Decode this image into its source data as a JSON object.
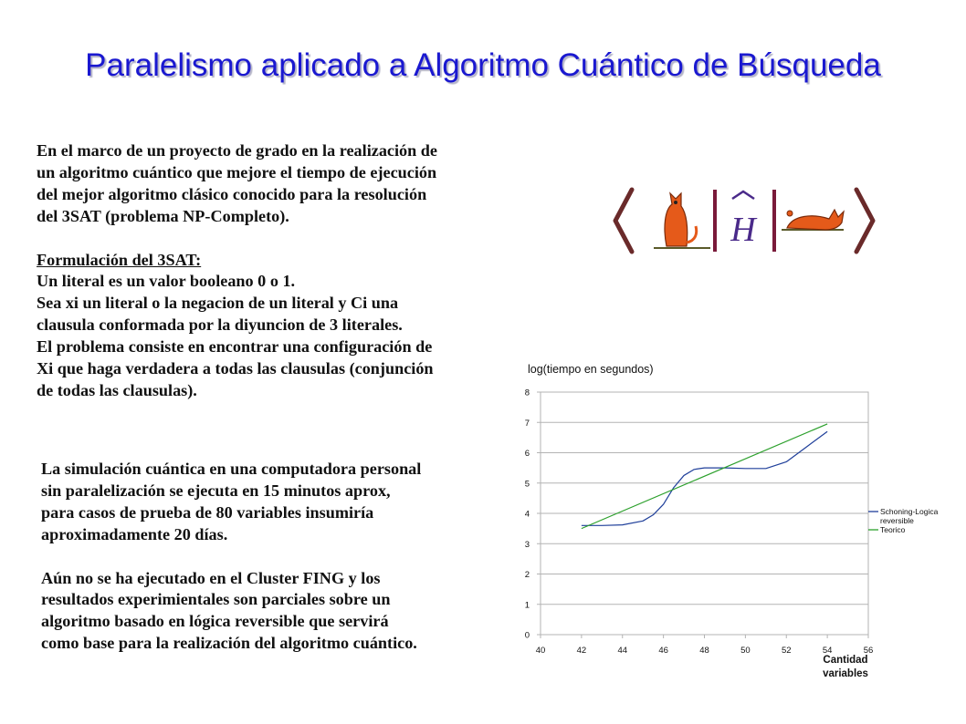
{
  "title": "Paralelismo aplicado a Algoritmo Cuántico de Búsqueda",
  "intro_lines": [
    "En el marco de un proyecto de grado en la realización de",
    "un algoritmo cuántico que mejore el tiempo de ejecución",
    "del mejor algoritmo clásico conocido para la resolución",
    "del 3SAT (problema NP-Completo)."
  ],
  "formulation": {
    "heading": "Formulación del 3SAT:",
    "lines": [
      "Un literal es un valor booleano 0 o 1.",
      "Sea xi un literal o la negacion de un literal y Ci una",
      "clausula conformada por la diyuncion de 3 literales.",
      "El problema consiste en encontrar una configuración de",
      "Xi que haga verdadera a todas las clausulas (conjunción",
      "de todas las clausulas)."
    ]
  },
  "simulation_lines": [
    "La simulación cuántica en una computadora personal",
    "sin paralelización se ejecuta en 15 minutos aprox,",
    "para casos de prueba de 80 variables insumiría",
    "aproximadamente 20 días."
  ],
  "status_lines": [
    "Aún no se ha ejecutado en el Cluster FING y los",
    "resultados experimientales son parciales sobre un",
    "algoritmo basado en lógica reversible que servirá",
    "como base para la realización del algoritmo cuántico."
  ],
  "chart_data": {
    "type": "line",
    "ylabel": "log(tiempo en segundos)",
    "xlabel_lines": [
      "Cantidad",
      "variables"
    ],
    "xlim": [
      40,
      56
    ],
    "ylim": [
      0,
      8
    ],
    "xticks": [
      40,
      42,
      44,
      46,
      48,
      50,
      52,
      54,
      56
    ],
    "yticks": [
      0,
      1,
      2,
      3,
      4,
      5,
      6,
      7,
      8
    ],
    "grid": "horizontal",
    "legend_position": "right",
    "series": [
      {
        "name_lines": [
          "Schoning-Logica",
          "reversible"
        ],
        "color": "#1f3f9a",
        "x": [
          42,
          43,
          44,
          45,
          45.5,
          46,
          46.5,
          47,
          47.5,
          48,
          49,
          50,
          51,
          52,
          53,
          54
        ],
        "y": [
          3.6,
          3.6,
          3.62,
          3.75,
          3.95,
          4.3,
          4.85,
          5.25,
          5.45,
          5.5,
          5.5,
          5.48,
          5.48,
          5.7,
          6.2,
          6.7
        ]
      },
      {
        "name_lines": [
          "Teorico"
        ],
        "color": "#2ca02c",
        "x": [
          42,
          54
        ],
        "y": [
          3.5,
          6.95
        ]
      }
    ]
  }
}
